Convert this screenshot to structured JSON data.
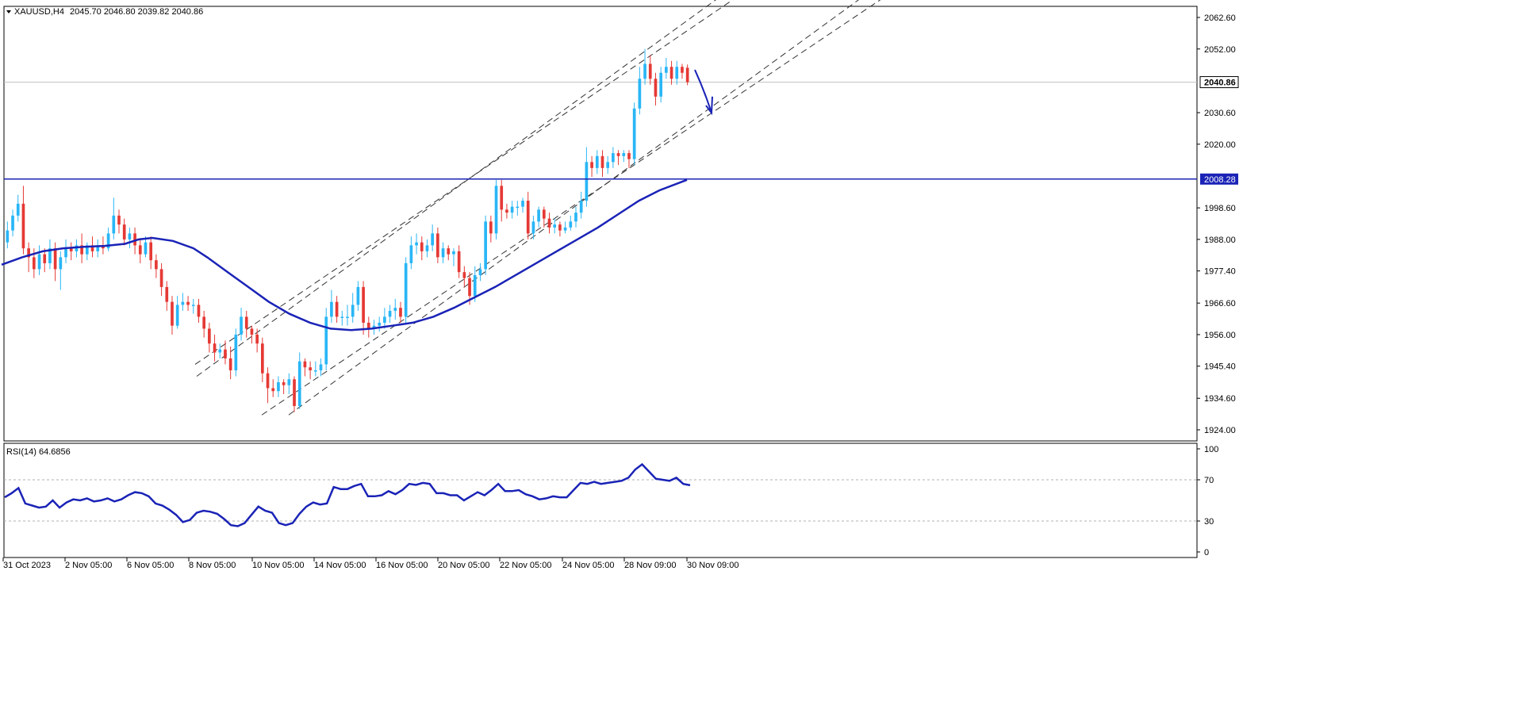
{
  "header": {
    "symbol": "XAUUSD,H4",
    "ohlc": "2045.70 2046.80 2039.82 2040.86"
  },
  "rsi_header": "RSI(14) 64.6856",
  "colors": {
    "bull": "#29b6f6",
    "bear": "#e53935",
    "ma": "#1a23b6",
    "support": "#1a23b6",
    "arrow": "#1a23b6",
    "rsi": "#1a23b6",
    "channel": "#333333"
  },
  "chart_data": [
    {
      "type": "candlestick",
      "title": "XAUUSD,H4",
      "y_ticks": [
        "2062.60",
        "2052.00",
        "2030.60",
        "2020.00",
        "1998.60",
        "1988.00",
        "1977.40",
        "1966.60",
        "1956.00",
        "1945.40",
        "1934.60",
        "1924.00"
      ],
      "ylim": [
        1920,
        2067
      ],
      "x_ticks": [
        "31 Oct 2023",
        "2 Nov 05:00",
        "6 Nov 05:00",
        "8 Nov 05:00",
        "10 Nov 05:00",
        "14 Nov 05:00",
        "16 Nov 05:00",
        "20 Nov 05:00",
        "22 Nov 05:00",
        "24 Nov 05:00",
        "28 Nov 09:00",
        "30 Nov 09:00"
      ],
      "current_price": "2040.86",
      "support_level": "2008.28",
      "candles": [
        [
          1987,
          1991,
          1985,
          1994
        ],
        [
          1991,
          1996,
          1989,
          1998
        ],
        [
          1996,
          2000,
          1994,
          2003
        ],
        [
          2000,
          1985,
          1983,
          2006
        ],
        [
          1985,
          1982,
          1977,
          1987
        ],
        [
          1982,
          1978,
          1975,
          1985
        ],
        [
          1978,
          1983,
          1976,
          1986
        ],
        [
          1983,
          1980,
          1977,
          1985
        ],
        [
          1980,
          1985,
          1978,
          1988
        ],
        [
          1985,
          1978,
          1974,
          1987
        ],
        [
          1978,
          1982,
          1971,
          1984
        ],
        [
          1982,
          1985,
          1980,
          1988
        ],
        [
          1985,
          1984,
          1981,
          1987
        ],
        [
          1984,
          1986,
          1982,
          1988
        ],
        [
          1986,
          1983,
          1980,
          1990
        ],
        [
          1983,
          1986,
          1981,
          1987
        ],
        [
          1986,
          1984,
          1982,
          1989
        ],
        [
          1984,
          1986,
          1982,
          1988
        ],
        [
          1986,
          1985,
          1983,
          1989
        ],
        [
          1985,
          1990,
          1984,
          1992
        ],
        [
          1990,
          1996,
          1988,
          2002
        ],
        [
          1996,
          1993,
          1990,
          1998
        ],
        [
          1993,
          1988,
          1986,
          1995
        ],
        [
          1988,
          1990,
          1985,
          1992
        ],
        [
          1990,
          1986,
          1983,
          1992
        ],
        [
          1986,
          1983,
          1980,
          1988
        ],
        [
          1983,
          1987,
          1982,
          1989
        ],
        [
          1987,
          1981,
          1978,
          1989
        ],
        [
          1981,
          1978,
          1975,
          1983
        ],
        [
          1978,
          1972,
          1969,
          1980
        ],
        [
          1972,
          1967,
          1964,
          1974
        ],
        [
          1967,
          1959,
          1956,
          1969
        ],
        [
          1959,
          1966,
          1958,
          1969
        ],
        [
          1966,
          1967,
          1964,
          1970
        ],
        [
          1967,
          1966,
          1964,
          1969
        ],
        [
          1966,
          1966,
          1963,
          1968
        ],
        [
          1966,
          1962,
          1960,
          1968
        ],
        [
          1962,
          1958,
          1955,
          1964
        ],
        [
          1958,
          1953,
          1950,
          1960
        ],
        [
          1953,
          1950,
          1947,
          1956
        ],
        [
          1950,
          1951,
          1948,
          1953
        ],
        [
          1951,
          1948,
          1946,
          1954
        ],
        [
          1948,
          1944,
          1941,
          1952
        ],
        [
          1944,
          1956,
          1942,
          1958
        ],
        [
          1956,
          1962,
          1954,
          1965
        ],
        [
          1962,
          1958,
          1955,
          1964
        ],
        [
          1958,
          1956,
          1953,
          1959
        ],
        [
          1956,
          1953,
          1950,
          1958
        ],
        [
          1953,
          1943,
          1940,
          1955
        ],
        [
          1943,
          1938,
          1933,
          1945
        ],
        [
          1938,
          1937,
          1935,
          1941
        ],
        [
          1937,
          1940,
          1935,
          1942
        ],
        [
          1940,
          1939,
          1936,
          1941
        ],
        [
          1939,
          1941,
          1936,
          1943
        ],
        [
          1941,
          1932,
          1930,
          1942
        ],
        [
          1932,
          1947,
          1931,
          1950
        ],
        [
          1947,
          1945,
          1942,
          1948
        ],
        [
          1945,
          1944,
          1941,
          1947
        ],
        [
          1944,
          1944,
          1942,
          1947
        ],
        [
          1944,
          1946,
          1942,
          1948
        ],
        [
          1946,
          1962,
          1944,
          1965
        ],
        [
          1962,
          1967,
          1960,
          1971
        ],
        [
          1967,
          1962,
          1960,
          1969
        ],
        [
          1962,
          1962,
          1959,
          1964
        ],
        [
          1962,
          1962,
          1959,
          1966
        ],
        [
          1962,
          1966,
          1960,
          1970
        ],
        [
          1966,
          1972,
          1964,
          1974
        ],
        [
          1972,
          1960,
          1956,
          1974
        ],
        [
          1960,
          1958,
          1955,
          1962
        ],
        [
          1958,
          1959,
          1956,
          1961
        ],
        [
          1959,
          1960,
          1957,
          1962
        ],
        [
          1960,
          1962,
          1958,
          1965
        ],
        [
          1962,
          1964,
          1960,
          1966
        ],
        [
          1964,
          1965,
          1961,
          1968
        ],
        [
          1965,
          1962,
          1960,
          1967
        ],
        [
          1962,
          1980,
          1960,
          1982
        ],
        [
          1980,
          1986,
          1978,
          1989
        ],
        [
          1986,
          1987,
          1983,
          1990
        ],
        [
          1987,
          1984,
          1981,
          1989
        ],
        [
          1984,
          1986,
          1982,
          1988
        ],
        [
          1986,
          1990,
          1984,
          1993
        ],
        [
          1990,
          1982,
          1980,
          1992
        ],
        [
          1982,
          1985,
          1980,
          1987
        ],
        [
          1985,
          1983,
          1981,
          1986
        ],
        [
          1983,
          1984,
          1979,
          1985
        ],
        [
          1984,
          1977,
          1975,
          1986
        ],
        [
          1977,
          1975,
          1972,
          1979
        ],
        [
          1975,
          1969,
          1966,
          1977
        ],
        [
          1969,
          1976,
          1967,
          1979
        ],
        [
          1976,
          1978,
          1974,
          1980
        ],
        [
          1978,
          1994,
          1976,
          1996
        ],
        [
          1994,
          1990,
          1987,
          1996
        ],
        [
          1990,
          2006,
          1988,
          2008
        ],
        [
          2006,
          1998,
          1994,
          2008
        ],
        [
          1998,
          1997,
          1995,
          2000
        ],
        [
          1997,
          1999,
          1995,
          2001
        ],
        [
          1999,
          1999,
          1996,
          2001
        ],
        [
          1999,
          2001,
          1997,
          2002
        ],
        [
          2001,
          1990,
          1988,
          2004
        ],
        [
          1990,
          1994,
          1988,
          1996
        ],
        [
          1994,
          1998,
          1992,
          1999
        ],
        [
          1998,
          1995,
          1992,
          1999
        ],
        [
          1995,
          1992,
          1990,
          1997
        ],
        [
          1992,
          1993,
          1990,
          1995
        ],
        [
          1993,
          1991,
          1989,
          1994
        ],
        [
          1991,
          1992,
          1990,
          1994
        ],
        [
          1992,
          1994,
          1991,
          1996
        ],
        [
          1994,
          1997,
          1992,
          1999
        ],
        [
          1997,
          2001,
          1995,
          2004
        ],
        [
          2001,
          2014,
          1999,
          2019
        ],
        [
          2014,
          2012,
          2009,
          2016
        ],
        [
          2012,
          2016,
          2010,
          2018
        ],
        [
          2016,
          2012,
          2009,
          2018
        ],
        [
          2012,
          2014,
          2010,
          2016
        ],
        [
          2014,
          2017,
          2012,
          2019
        ],
        [
          2017,
          2016,
          2013,
          2018
        ],
        [
          2016,
          2017,
          2014,
          2018
        ],
        [
          2017,
          2015,
          2012,
          2018
        ],
        [
          2015,
          2032,
          2013,
          2034
        ],
        [
          2032,
          2042,
          2030,
          2046
        ],
        [
          2042,
          2047,
          2040,
          2052
        ],
        [
          2047,
          2042,
          2040,
          2050
        ],
        [
          2042,
          2036,
          2033,
          2044
        ],
        [
          2036,
          2044,
          2034,
          2046
        ],
        [
          2044,
          2046,
          2042,
          2049
        ],
        [
          2046,
          2042,
          2040,
          2048
        ],
        [
          2042,
          2046,
          2040,
          2048
        ],
        [
          2046,
          2044,
          2042,
          2047
        ],
        [
          2045.7,
          2040.86,
          2039.82,
          2046.8
        ]
      ],
      "ma": [
        [
          0,
          1979.5
        ],
        [
          0.03,
          1982
        ],
        [
          0.06,
          1984
        ],
        [
          0.09,
          1985
        ],
        [
          0.12,
          1985.5
        ],
        [
          0.15,
          1985.8
        ],
        [
          0.18,
          1986.5
        ],
        [
          0.2,
          1988
        ],
        [
          0.22,
          1988.5
        ],
        [
          0.25,
          1987.5
        ],
        [
          0.28,
          1985
        ],
        [
          0.3,
          1982
        ],
        [
          0.33,
          1977
        ],
        [
          0.36,
          1972
        ],
        [
          0.39,
          1967
        ],
        [
          0.42,
          1963
        ],
        [
          0.45,
          1960
        ],
        [
          0.48,
          1958
        ],
        [
          0.51,
          1957.5
        ],
        [
          0.54,
          1958
        ],
        [
          0.57,
          1959
        ],
        [
          0.6,
          1960
        ],
        [
          0.63,
          1962
        ],
        [
          0.66,
          1965
        ],
        [
          0.69,
          1968.5
        ],
        [
          0.72,
          1972
        ],
        [
          0.75,
          1976
        ],
        [
          0.78,
          1980
        ],
        [
          0.81,
          1984
        ],
        [
          0.84,
          1988
        ],
        [
          0.87,
          1992
        ],
        [
          0.9,
          1996.5
        ],
        [
          0.93,
          2001
        ],
        [
          0.96,
          2004.5
        ],
        [
          1.0,
          2008
        ]
      ],
      "channel_outer": [
        [
          1933,
          1929
        ],
        [
          1956,
          2067
        ]
      ],
      "channel_inner": [
        [
          1943,
          1931
        ],
        [
          1934,
          2067
        ]
      ]
    },
    {
      "type": "line",
      "title": "RSI(14) 64.6856",
      "y_ticks": [
        "100",
        "70",
        "30",
        "0"
      ],
      "ylim": [
        0,
        100
      ],
      "levels": [
        70,
        30
      ],
      "values": [
        53,
        57,
        62,
        47,
        45,
        43,
        44,
        50,
        43,
        48,
        51,
        50,
        52,
        49,
        50,
        52,
        49,
        51,
        55,
        58,
        57,
        54,
        47,
        45,
        41,
        36,
        29,
        31,
        38,
        40,
        39,
        37,
        32,
        26,
        25,
        28,
        36,
        44,
        40,
        38,
        28,
        26,
        28,
        37,
        44,
        48,
        46,
        47,
        63,
        61,
        61,
        64,
        66,
        54,
        54,
        55,
        59,
        56,
        60,
        66,
        65,
        67,
        66,
        57,
        57,
        55,
        55,
        50,
        54,
        58,
        55,
        60,
        66,
        59,
        59,
        60,
        56,
        54,
        51,
        52,
        54,
        53,
        53,
        60,
        67,
        66,
        68,
        66,
        67,
        68,
        69,
        72,
        80,
        85,
        78,
        71,
        70,
        69,
        72,
        66,
        64.69
      ]
    }
  ]
}
